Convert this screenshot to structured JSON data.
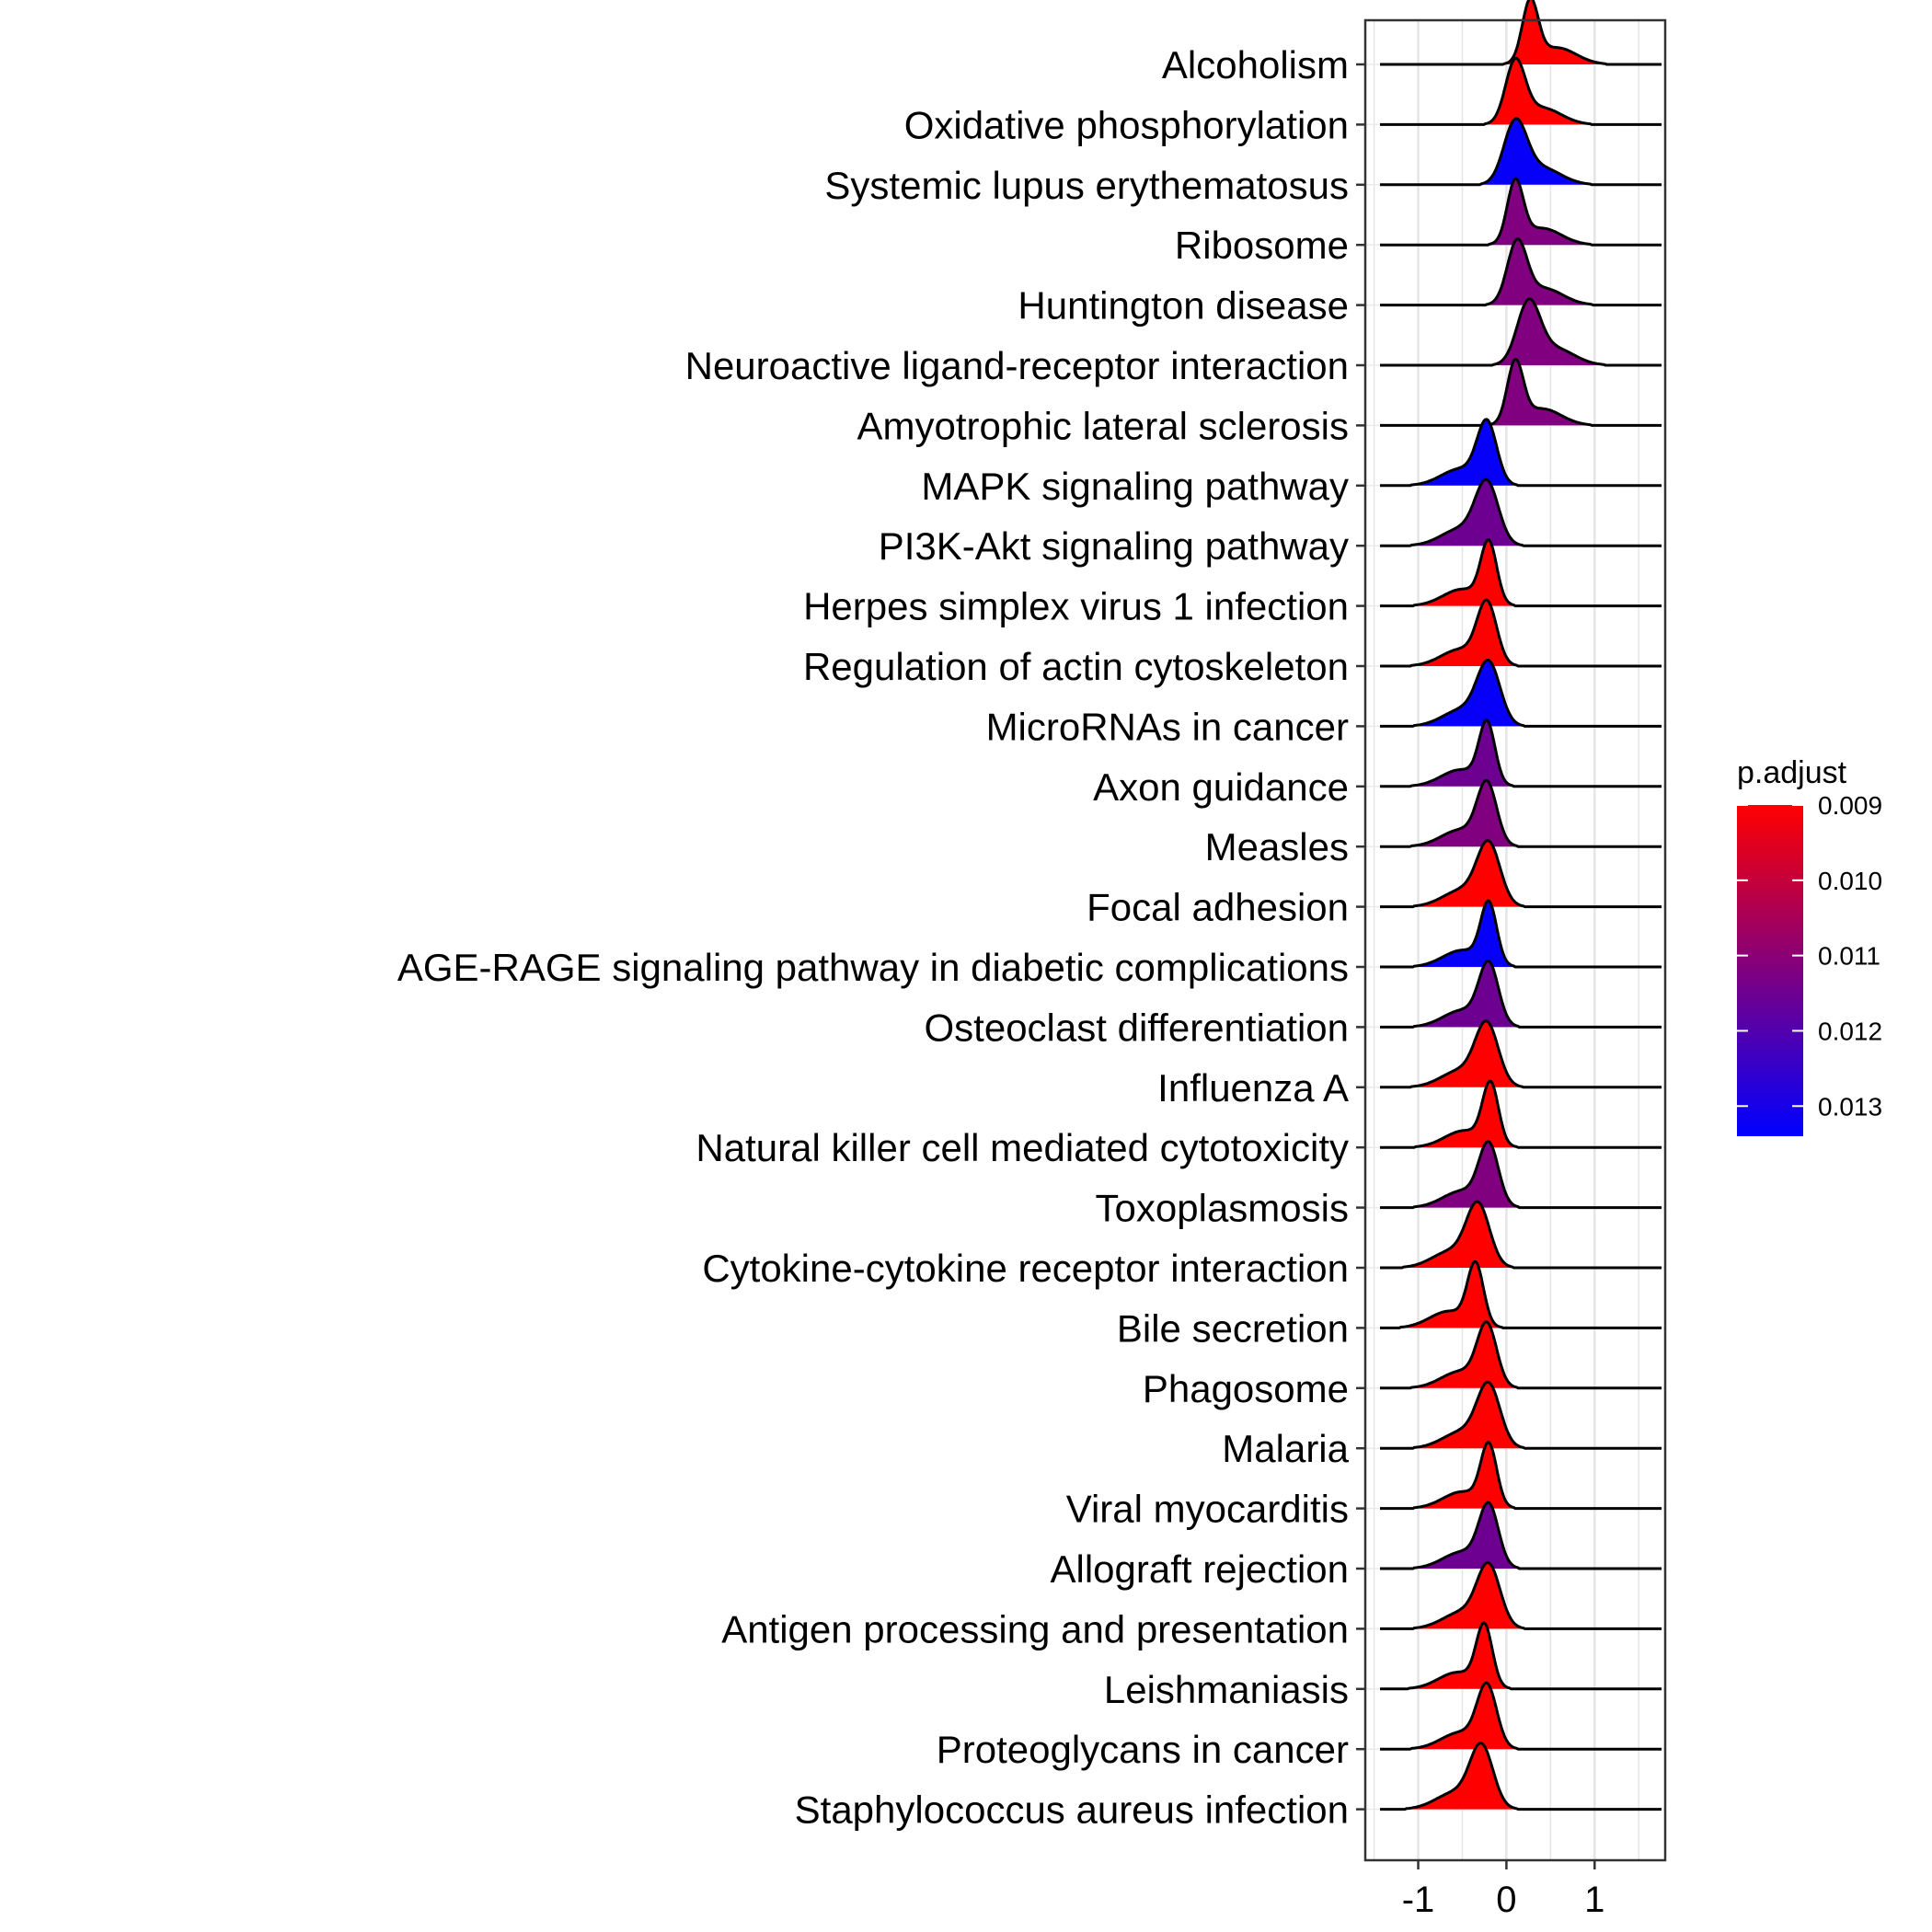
{
  "chart_data": {
    "type": "ridgeline",
    "categories": [
      "Alcoholism",
      "Oxidative phosphorylation",
      "Systemic lupus erythematosus",
      "Ribosome",
      "Huntington disease",
      "Neuroactive ligand-receptor interaction",
      "Amyotrophic lateral sclerosis",
      "MAPK signaling pathway",
      "PI3K-Akt signaling pathway",
      "Herpes simplex virus 1 infection",
      "Regulation of actin cytoskeleton",
      "MicroRNAs in cancer",
      "Axon guidance",
      "Measles",
      "Focal adhesion",
      "AGE-RAGE signaling pathway in diabetic complications",
      "Osteoclast differentiation",
      "Influenza A",
      "Natural killer cell mediated cytotoxicity",
      "Toxoplasmosis",
      "Cytokine-cytokine receptor interaction",
      "Bile secretion",
      "Phagosome",
      "Malaria",
      "Viral myocarditis",
      "Allograft rejection",
      "Antigen processing and presentation",
      "Leishmaniasis",
      "Proteoglycans in cancer",
      "Staphylococcus aureus infection"
    ],
    "peak_x": [
      0.27,
      0.1,
      0.1,
      0.1,
      0.12,
      0.25,
      0.1,
      -0.22,
      -0.22,
      -0.2,
      -0.22,
      -0.2,
      -0.22,
      -0.22,
      -0.2,
      -0.2,
      -0.2,
      -0.22,
      -0.18,
      -0.2,
      -0.32,
      -0.35,
      -0.22,
      -0.2,
      -0.2,
      -0.2,
      -0.2,
      -0.25,
      -0.22,
      -0.28
    ],
    "p_adjust": [
      0.009,
      0.009,
      0.0133,
      0.0112,
      0.0112,
      0.0112,
      0.0112,
      0.0133,
      0.0115,
      0.009,
      0.009,
      0.0133,
      0.0115,
      0.0112,
      0.009,
      0.0133,
      0.0115,
      0.009,
      0.009,
      0.0112,
      0.009,
      0.009,
      0.009,
      0.009,
      0.009,
      0.0115,
      0.009,
      0.009,
      0.009,
      0.009
    ],
    "xlim": [
      -1.6,
      1.8
    ],
    "x_ticks": [
      -1,
      0,
      1
    ],
    "x_tick_labels": [
      "-1",
      "0",
      "1"
    ],
    "grid": true,
    "legend": {
      "title": "p.adjust",
      "position": "right",
      "range": [
        0.009,
        0.0134
      ],
      "ticks": [
        0.009,
        0.01,
        0.011,
        0.012,
        0.013
      ],
      "tick_labels": [
        "0.009",
        "0.010",
        "0.011",
        "0.012",
        "0.013"
      ],
      "color_low_p": "#FF0000",
      "color_high_p": "#0000FF"
    }
  }
}
